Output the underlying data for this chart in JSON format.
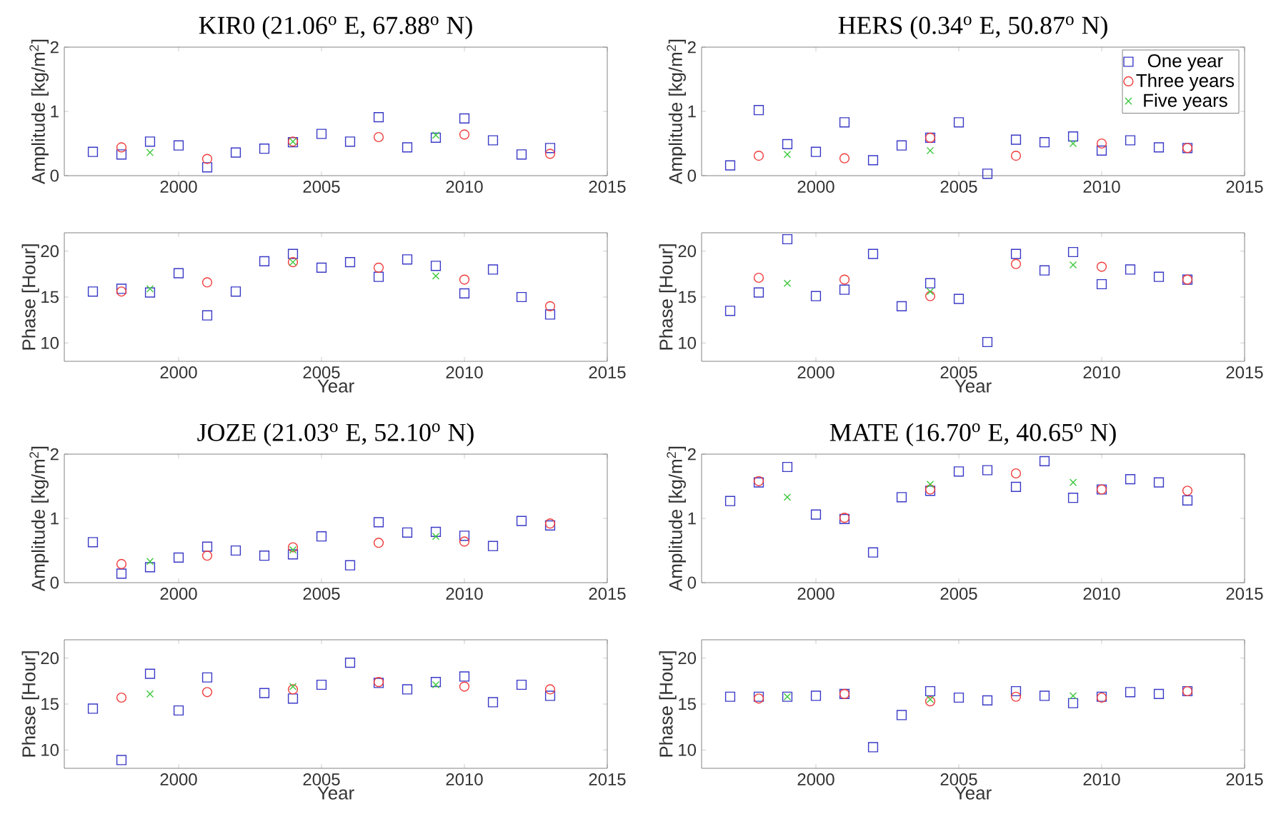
{
  "chart_data": [
    {
      "type": "scatter",
      "title": "KIR0 (21.06$^{o}$ E,  67.88$^{o}$ N)",
      "ylabel": "Amplitude [kg/m$^{2}$]",
      "xlim": [
        1996,
        2015
      ],
      "xticks": [
        2000,
        2005,
        2010,
        2015
      ],
      "ylim": [
        0,
        2
      ],
      "yticks": [
        0,
        1,
        2
      ],
      "series": [
        {
          "color": "#3a3ac8",
          "marker": "square",
          "x": [
            1997,
            1998,
            1999,
            2000,
            2001,
            2002,
            2003,
            2004,
            2005,
            2006,
            2007,
            2008,
            2009,
            2010,
            2011,
            2012,
            2013
          ],
          "values": [
            0.37,
            0.33,
            0.53,
            0.47,
            0.13,
            0.36,
            0.42,
            0.52,
            0.65,
            0.53,
            0.91,
            0.44,
            0.59,
            0.89,
            0.55,
            0.33,
            0.43
          ]
        },
        {
          "color": "#f03c3c",
          "marker": "circle",
          "x": [
            1998,
            2001,
            2004,
            2007,
            2010,
            2013
          ],
          "values": [
            0.44,
            0.26,
            0.53,
            0.6,
            0.64,
            0.34
          ]
        },
        {
          "color": "#3cc83c",
          "marker": "cross",
          "x": [
            1999,
            2004,
            2009
          ],
          "values": [
            0.36,
            0.53,
            0.63
          ]
        }
      ]
    },
    {
      "type": "scatter",
      "title": "HERS (0.34$^{o}$ E, 50.87$^{o}$ N)",
      "ylabel": "Amplitude [kg/m$^{2}$]",
      "xlim": [
        1996,
        2015
      ],
      "xticks": [
        2000,
        2005,
        2010,
        2015
      ],
      "ylim": [
        0,
        2
      ],
      "yticks": [
        0,
        1,
        2
      ],
      "legend": "top right",
      "series": [
        {
          "name": "One year",
          "color": "#3a3ac8",
          "marker": "square",
          "x": [
            1997,
            1998,
            1999,
            2000,
            2001,
            2002,
            2003,
            2004,
            2005,
            2006,
            2007,
            2008,
            2009,
            2010,
            2011,
            2012,
            2013
          ],
          "values": [
            0.16,
            1.02,
            0.49,
            0.37,
            0.83,
            0.24,
            0.47,
            0.59,
            0.83,
            0.03,
            0.56,
            0.52,
            0.61,
            0.39,
            0.55,
            0.44,
            0.43
          ]
        },
        {
          "name": "Three years",
          "color": "#f03c3c",
          "marker": "circle",
          "x": [
            1998,
            2001,
            2004,
            2007,
            2010,
            2013
          ],
          "values": [
            0.31,
            0.27,
            0.59,
            0.31,
            0.5,
            0.43
          ]
        },
        {
          "name": "Five years",
          "color": "#3cc83c",
          "marker": "cross",
          "x": [
            1999,
            2004,
            2009
          ],
          "values": [
            0.33,
            0.39,
            0.5
          ]
        }
      ]
    },
    {
      "type": "scatter",
      "xlabel": "Year",
      "ylabel": "Phase [Hour]",
      "xlim": [
        1996,
        2015
      ],
      "xticks": [
        2000,
        2005,
        2010,
        2015
      ],
      "ylim": [
        8,
        22
      ],
      "yticks": [
        10,
        15,
        20
      ],
      "series": [
        {
          "color": "#3a3ac8",
          "marker": "square",
          "x": [
            1997,
            1998,
            1999,
            2000,
            2001,
            2002,
            2003,
            2004,
            2005,
            2006,
            2007,
            2008,
            2009,
            2010,
            2011,
            2012,
            2013
          ],
          "values": [
            15.6,
            15.9,
            15.5,
            17.6,
            13.0,
            15.6,
            18.9,
            19.7,
            18.2,
            18.8,
            17.2,
            19.1,
            18.4,
            15.4,
            18.0,
            15.0,
            13.1
          ]
        },
        {
          "color": "#f03c3c",
          "marker": "circle",
          "x": [
            1998,
            2001,
            2004,
            2007,
            2010,
            2013
          ],
          "values": [
            15.6,
            16.6,
            18.8,
            18.2,
            16.9,
            14.0
          ]
        },
        {
          "color": "#3cc83c",
          "marker": "cross",
          "x": [
            1999,
            2004,
            2009
          ],
          "values": [
            15.9,
            18.8,
            17.3
          ]
        }
      ]
    },
    {
      "type": "scatter",
      "xlabel": "Year",
      "ylabel": "Phase [Hour]",
      "xlim": [
        1996,
        2015
      ],
      "xticks": [
        2000,
        2005,
        2010,
        2015
      ],
      "ylim": [
        8,
        22
      ],
      "yticks": [
        10,
        15,
        20
      ],
      "series": [
        {
          "color": "#3a3ac8",
          "marker": "square",
          "x": [
            1997,
            1998,
            1999,
            2000,
            2001,
            2002,
            2003,
            2004,
            2005,
            2006,
            2007,
            2008,
            2009,
            2010,
            2011,
            2012,
            2013
          ],
          "values": [
            13.5,
            15.5,
            21.3,
            15.1,
            15.8,
            19.7,
            14.0,
            16.5,
            14.8,
            10.1,
            19.7,
            17.9,
            19.9,
            16.4,
            18.0,
            17.2,
            16.9
          ]
        },
        {
          "color": "#f03c3c",
          "marker": "circle",
          "x": [
            1998,
            2001,
            2004,
            2007,
            2010,
            2013
          ],
          "values": [
            17.1,
            16.9,
            15.1,
            18.6,
            18.3,
            16.9
          ]
        },
        {
          "color": "#3cc83c",
          "marker": "cross",
          "x": [
            1999,
            2004,
            2009
          ],
          "values": [
            16.5,
            15.6,
            18.5
          ]
        }
      ]
    },
    {
      "type": "scatter",
      "title": "JOZE (21.03$^{o}$ E,  52.10$^{o}$ N)",
      "ylabel": "Amplitude [kg/m$^{2}$]",
      "xlim": [
        1996,
        2015
      ],
      "xticks": [
        2000,
        2005,
        2010,
        2015
      ],
      "ylim": [
        0,
        2
      ],
      "yticks": [
        0,
        1,
        2
      ],
      "series": [
        {
          "color": "#3a3ac8",
          "marker": "square",
          "x": [
            1997,
            1998,
            1999,
            2000,
            2001,
            2002,
            2003,
            2004,
            2005,
            2006,
            2007,
            2008,
            2009,
            2010,
            2011,
            2012,
            2013
          ],
          "values": [
            0.63,
            0.14,
            0.24,
            0.39,
            0.56,
            0.5,
            0.42,
            0.44,
            0.72,
            0.27,
            0.94,
            0.78,
            0.79,
            0.73,
            0.57,
            0.96,
            0.89
          ]
        },
        {
          "color": "#f03c3c",
          "marker": "circle",
          "x": [
            1998,
            2001,
            2004,
            2007,
            2010,
            2013
          ],
          "values": [
            0.29,
            0.42,
            0.55,
            0.62,
            0.64,
            0.92
          ]
        },
        {
          "color": "#3cc83c",
          "marker": "cross",
          "x": [
            1999,
            2004,
            2009
          ],
          "values": [
            0.33,
            0.51,
            0.72
          ]
        }
      ]
    },
    {
      "type": "scatter",
      "title": "MATE (16.70$^{o}$ E, 40.65$^{o}$ N)",
      "ylabel": "Amplitude [kg/m$^{2}$]",
      "xlim": [
        1996,
        2015
      ],
      "xticks": [
        2000,
        2005,
        2010,
        2015
      ],
      "ylim": [
        0,
        2
      ],
      "yticks": [
        0,
        1,
        2
      ],
      "series": [
        {
          "color": "#3a3ac8",
          "marker": "square",
          "x": [
            1997,
            1998,
            1999,
            2000,
            2001,
            2002,
            2003,
            2004,
            2005,
            2006,
            2007,
            2008,
            2009,
            2010,
            2011,
            2012,
            2013
          ],
          "values": [
            1.27,
            1.56,
            1.8,
            1.06,
            0.99,
            0.47,
            1.33,
            1.43,
            1.73,
            1.75,
            1.49,
            1.89,
            1.32,
            1.45,
            1.61,
            1.56,
            1.28
          ]
        },
        {
          "color": "#f03c3c",
          "marker": "circle",
          "x": [
            1998,
            2001,
            2004,
            2007,
            2010,
            2013
          ],
          "values": [
            1.58,
            1.01,
            1.45,
            1.7,
            1.45,
            1.43
          ]
        },
        {
          "color": "#3cc83c",
          "marker": "cross",
          "x": [
            1999,
            2004,
            2009
          ],
          "values": [
            1.33,
            1.53,
            1.56
          ]
        }
      ]
    },
    {
      "type": "scatter",
      "xlabel": "Year",
      "ylabel": "Phase [Hour]",
      "xlim": [
        1996,
        2015
      ],
      "xticks": [
        2000,
        2005,
        2010,
        2015
      ],
      "ylim": [
        8,
        22
      ],
      "yticks": [
        10,
        15,
        20
      ],
      "series": [
        {
          "color": "#3a3ac8",
          "marker": "square",
          "x": [
            1997,
            1998,
            1999,
            2000,
            2001,
            2002,
            2003,
            2004,
            2005,
            2006,
            2007,
            2008,
            2009,
            2010,
            2011,
            2012,
            2013
          ],
          "values": [
            14.5,
            8.9,
            18.3,
            14.3,
            17.9,
            null,
            16.2,
            15.6,
            17.1,
            19.5,
            17.3,
            16.6,
            17.4,
            18.0,
            15.2,
            17.1,
            15.9
          ]
        },
        {
          "color": "#f03c3c",
          "marker": "circle",
          "x": [
            1998,
            2001,
            2004,
            2007,
            2010,
            2013
          ],
          "values": [
            15.7,
            16.3,
            16.6,
            17.4,
            16.9,
            16.6
          ]
        },
        {
          "color": "#3cc83c",
          "marker": "cross",
          "x": [
            1999,
            2004,
            2009
          ],
          "values": [
            16.1,
            16.9,
            17.1
          ]
        }
      ]
    },
    {
      "type": "scatter",
      "xlabel": "Year",
      "ylabel": "Phase [Hour]",
      "xlim": [
        1996,
        2015
      ],
      "xticks": [
        2000,
        2005,
        2010,
        2015
      ],
      "ylim": [
        8,
        22
      ],
      "yticks": [
        10,
        15,
        20
      ],
      "series": [
        {
          "color": "#3a3ac8",
          "marker": "square",
          "x": [
            1997,
            1998,
            1999,
            2000,
            2001,
            2002,
            2003,
            2004,
            2005,
            2006,
            2007,
            2008,
            2009,
            2010,
            2011,
            2012,
            2013
          ],
          "values": [
            15.8,
            15.8,
            15.8,
            15.9,
            16.1,
            10.3,
            13.8,
            16.4,
            15.7,
            15.4,
            16.4,
            15.9,
            15.1,
            15.8,
            16.3,
            16.1,
            16.4
          ]
        },
        {
          "color": "#f03c3c",
          "marker": "circle",
          "x": [
            1998,
            2001,
            2004,
            2007,
            2010,
            2013
          ],
          "values": [
            15.6,
            16.1,
            15.3,
            15.8,
            15.7,
            16.4
          ]
        },
        {
          "color": "#3cc83c",
          "marker": "cross",
          "x": [
            1999,
            2004,
            2009
          ],
          "values": [
            15.8,
            15.5,
            15.9
          ]
        }
      ]
    }
  ]
}
